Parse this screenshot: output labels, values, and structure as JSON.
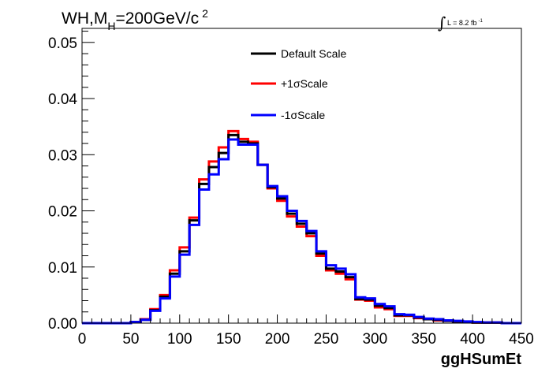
{
  "chart_data": {
    "type": "line",
    "title_main": "WH,M",
    "title_sub": "H",
    "title_rest": "=200GeV/c",
    "title_sup": "2",
    "lumi_integral": "∫",
    "lumi_label": "L = 8.2 fb",
    "lumi_sup": "-1",
    "xlabel": "ggHSumEt",
    "xlim": [
      0,
      450
    ],
    "ylim": [
      0,
      0.0525
    ],
    "x_ticks": [
      0,
      50,
      100,
      150,
      200,
      250,
      300,
      350,
      400,
      450
    ],
    "x_tick_labels": [
      "0",
      "50",
      "100",
      "150",
      "200",
      "250",
      "300",
      "350",
      "400",
      "450"
    ],
    "y_ticks": [
      0,
      0.01,
      0.02,
      0.03,
      0.04,
      0.05
    ],
    "y_tick_labels": [
      "0.00",
      "0.01",
      "0.02",
      "0.03",
      "0.04",
      "0.05"
    ],
    "bin_edges": [
      0,
      10,
      20,
      30,
      40,
      50,
      60,
      70,
      80,
      90,
      100,
      110,
      120,
      130,
      140,
      150,
      160,
      170,
      180,
      190,
      200,
      210,
      220,
      230,
      240,
      250,
      260,
      270,
      280,
      290,
      300,
      310,
      320,
      330,
      340,
      350,
      360,
      370,
      380,
      390,
      400,
      410,
      420,
      430,
      440,
      450
    ],
    "legend_position": "top-center",
    "series": [
      {
        "name": "Default Scale",
        "color": "#000000",
        "values": [
          0,
          0,
          0,
          0,
          0,
          0.0002,
          0.0006,
          0.0023,
          0.0047,
          0.0088,
          0.0128,
          0.0183,
          0.0248,
          0.0278,
          0.0303,
          0.0335,
          0.0323,
          0.032,
          0.0282,
          0.0242,
          0.0222,
          0.0195,
          0.0177,
          0.016,
          0.0124,
          0.0097,
          0.0092,
          0.0082,
          0.0043,
          0.0042,
          0.0031,
          0.0027,
          0.0014,
          0.0014,
          0.001,
          0.0007,
          0.0006,
          0.0004,
          0.0003,
          0.0002,
          0.0001,
          0.0001,
          0.0001,
          0,
          0
        ]
      },
      {
        "name": "+1σScale",
        "color": "#ff0000",
        "values": [
          0,
          0,
          0,
          0,
          0,
          0.0002,
          0.0007,
          0.0025,
          0.005,
          0.0094,
          0.0135,
          0.0188,
          0.0256,
          0.0288,
          0.0313,
          0.0342,
          0.0328,
          0.0323,
          0.0282,
          0.024,
          0.0218,
          0.019,
          0.0172,
          0.0155,
          0.012,
          0.0094,
          0.0088,
          0.0078,
          0.0042,
          0.004,
          0.0028,
          0.0025,
          0.0013,
          0.0013,
          0.0009,
          0.0007,
          0.0005,
          0.0004,
          0.0003,
          0.0002,
          0.0001,
          0.0001,
          0.0001,
          0,
          0
        ]
      },
      {
        "name": "-1σScale",
        "color": "#0000ff",
        "values": [
          0,
          0,
          0,
          0,
          0,
          0.0002,
          0.0006,
          0.0022,
          0.0044,
          0.0083,
          0.0122,
          0.0175,
          0.0238,
          0.0265,
          0.0292,
          0.0327,
          0.0318,
          0.0318,
          0.0282,
          0.0244,
          0.0226,
          0.02,
          0.0182,
          0.0164,
          0.0128,
          0.0103,
          0.0097,
          0.0087,
          0.0046,
          0.0044,
          0.0034,
          0.003,
          0.0016,
          0.0015,
          0.0011,
          0.0008,
          0.0007,
          0.0005,
          0.0004,
          0.0003,
          0.0002,
          0.0001,
          0.0001,
          0,
          0
        ]
      }
    ]
  }
}
